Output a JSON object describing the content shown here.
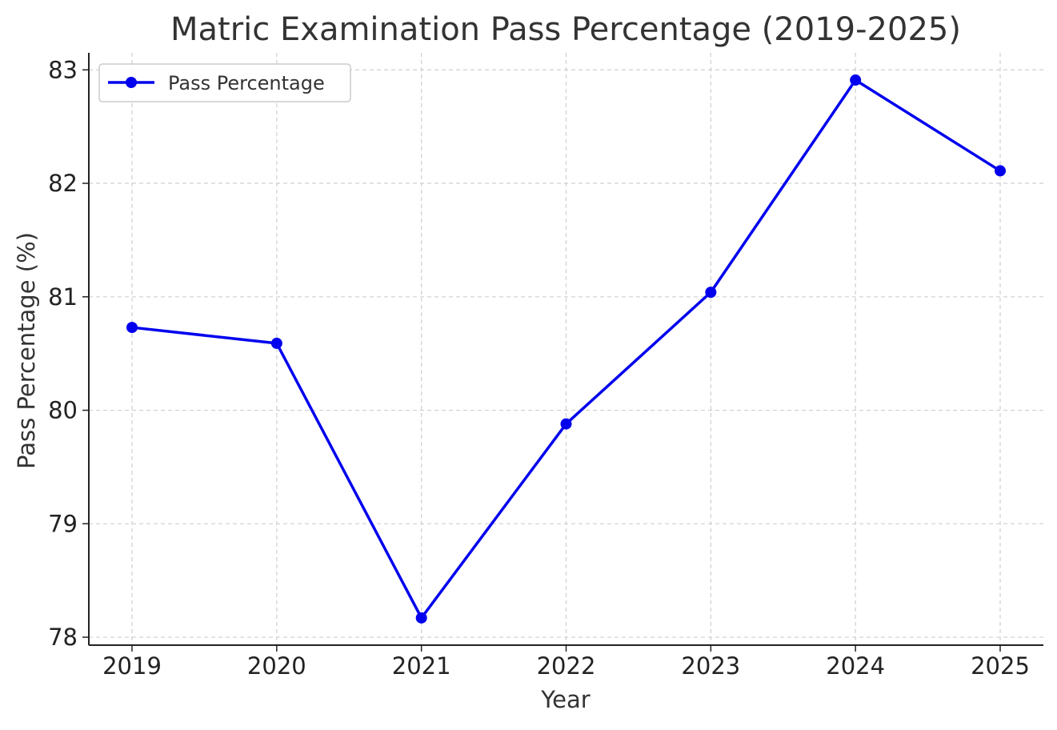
{
  "chart_data": {
    "type": "line",
    "title": "Matric Examination Pass Percentage (2019-2025)",
    "xlabel": "Year",
    "ylabel": "Pass Percentage (%)",
    "x": [
      "2019",
      "2020",
      "2021",
      "2022",
      "2023",
      "2024",
      "2025"
    ],
    "series": [
      {
        "name": "Pass Percentage",
        "values": [
          80.73,
          80.59,
          78.17,
          79.88,
          81.04,
          82.91,
          82.11
        ],
        "color": "#0000ee",
        "marker": "circle"
      }
    ],
    "ylim": [
      77.93,
      83.15
    ],
    "yticks": [
      78,
      79,
      80,
      81,
      82,
      83
    ],
    "grid": true,
    "legend_position": "top-left"
  }
}
